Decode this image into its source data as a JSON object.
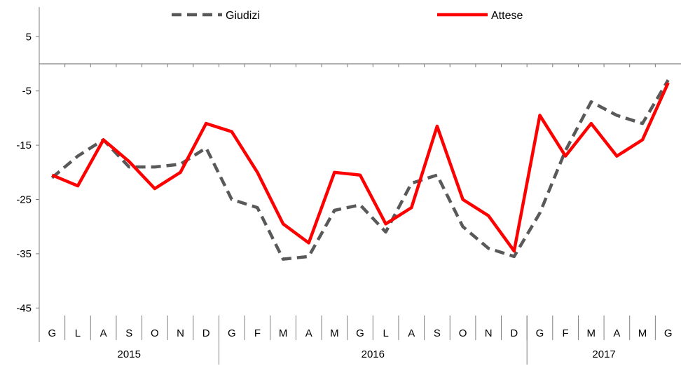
{
  "chart_data": {
    "type": "line",
    "categories": [
      "G",
      "L",
      "A",
      "S",
      "O",
      "N",
      "D",
      "G",
      "F",
      "M",
      "A",
      "M",
      "G",
      "L",
      "A",
      "S",
      "O",
      "N",
      "D",
      "G",
      "F",
      "M",
      "A",
      "M",
      "G"
    ],
    "year_labels": [
      "2015",
      "2016",
      "2017"
    ],
    "year_spans": [
      [
        0,
        6
      ],
      [
        7,
        18
      ],
      [
        19,
        24
      ]
    ],
    "y_ticks": [
      5,
      -5,
      -15,
      -25,
      -35,
      -45
    ],
    "ylim": [
      -45,
      10
    ],
    "x_axis_at": 0,
    "series": [
      {
        "name": "Giudizi",
        "color": "#595959",
        "style": "dashed",
        "values": [
          -21,
          -17,
          -14,
          -19,
          -19,
          -18.5,
          -15.5,
          -25,
          -26.5,
          -36,
          -35.5,
          -27,
          -26,
          -31,
          -22,
          -20.5,
          -30,
          -34,
          -35.5,
          -27.5,
          -16,
          -7,
          -9.5,
          -11,
          -3
        ]
      },
      {
        "name": "Attese",
        "color": "#ff0000",
        "style": "solid",
        "values": [
          -20.5,
          -22.5,
          -14,
          -18,
          -23,
          -20,
          -11,
          -12.5,
          -20,
          -29.5,
          -33,
          -20,
          -20.5,
          -29.5,
          -26.5,
          -11.5,
          -25,
          -28,
          -34.5,
          -9.5,
          -17,
          -11,
          -17,
          -14,
          -3.5
        ]
      }
    ]
  }
}
